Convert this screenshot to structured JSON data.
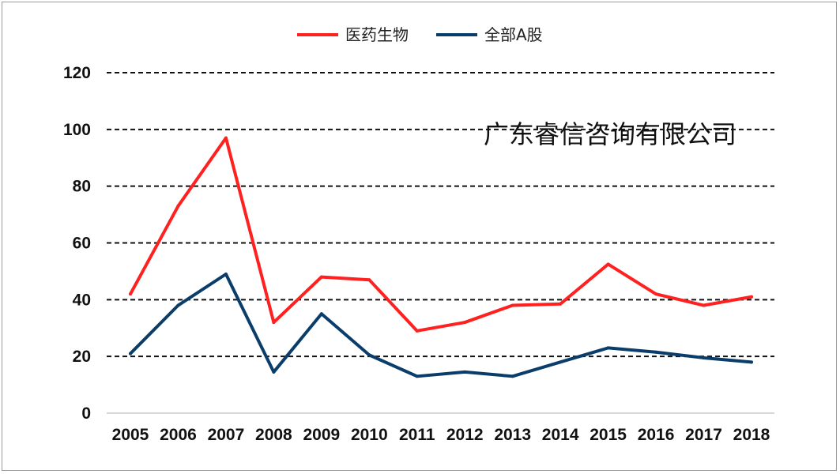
{
  "chart_data": {
    "type": "line",
    "categories": [
      "2005",
      "2006",
      "2007",
      "2008",
      "2009",
      "2010",
      "2011",
      "2012",
      "2013",
      "2014",
      "2015",
      "2016",
      "2017",
      "2018"
    ],
    "series": [
      {
        "name": "医药生物",
        "color": "#ff2020",
        "values": [
          42,
          73,
          97,
          32,
          48,
          47,
          29,
          32,
          38,
          38.5,
          52.5,
          42,
          38,
          41
        ]
      },
      {
        "name": "全部A股",
        "color": "#0b3d6b",
        "values": [
          21,
          38,
          49,
          14.5,
          35,
          20.5,
          13,
          14.5,
          13,
          18,
          23,
          21.5,
          19.5,
          18
        ]
      }
    ],
    "yticks": [
      0,
      20,
      40,
      60,
      80,
      100,
      120
    ],
    "ylim": [
      0,
      120
    ],
    "grid": "dashed horizontal",
    "legend": "top-center"
  },
  "watermark": "广东睿信咨询有限公司"
}
